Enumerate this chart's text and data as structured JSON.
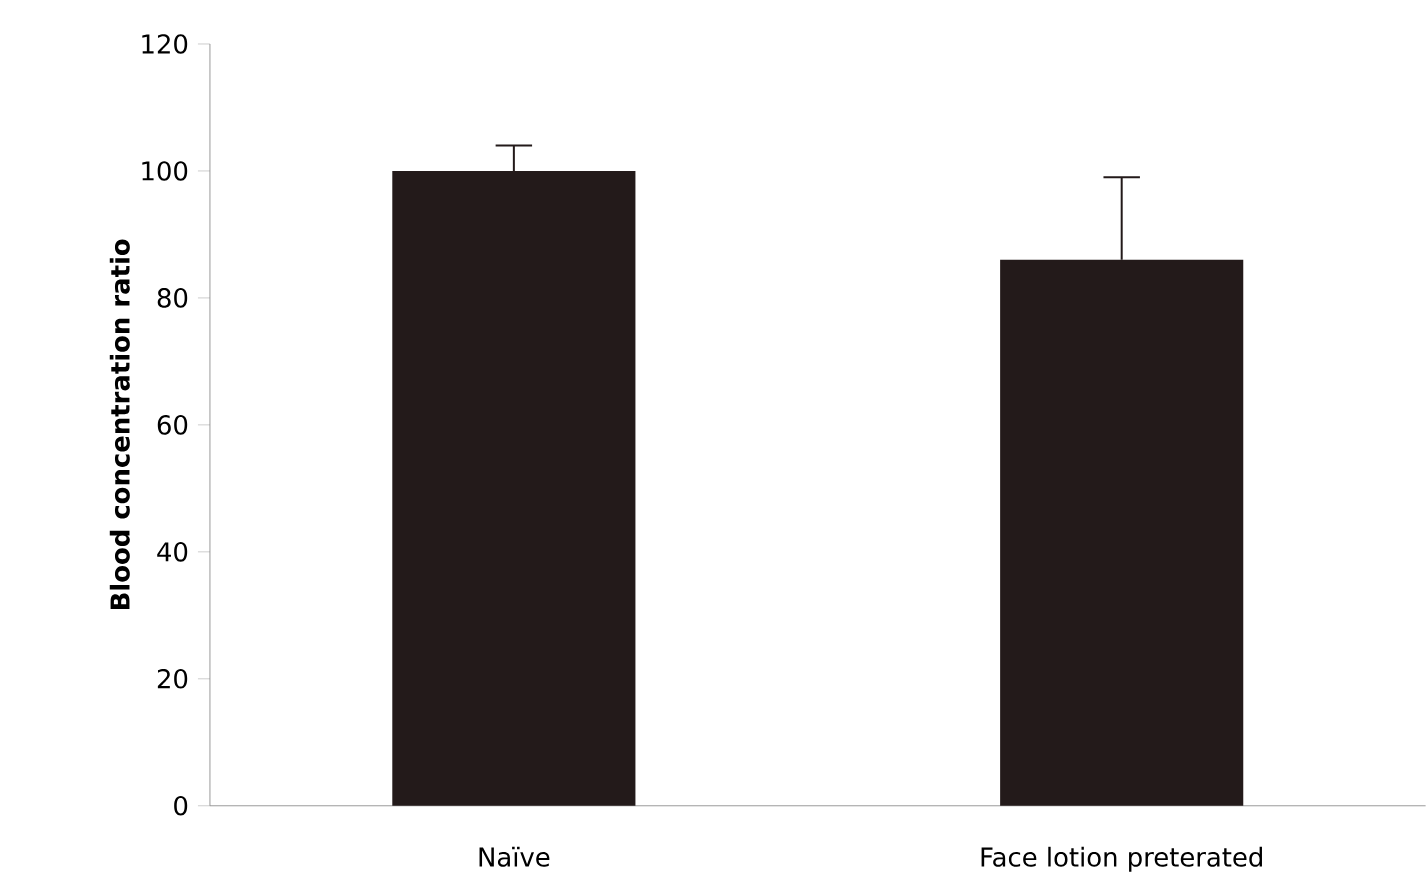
{
  "chart_data": {
    "type": "bar",
    "ylabel": "Blood concentration ratio",
    "categories": [
      "Naïve",
      "Face lotion preterated"
    ],
    "values": [
      100,
      86
    ],
    "color": "#231a1a",
    "errors": [
      [
        100,
        104
      ],
      [
        86,
        99
      ]
    ],
    "ylim": [
      0,
      120
    ],
    "yticks": [
      0,
      20,
      40,
      60,
      80,
      100,
      120
    ],
    "grid": false
  }
}
